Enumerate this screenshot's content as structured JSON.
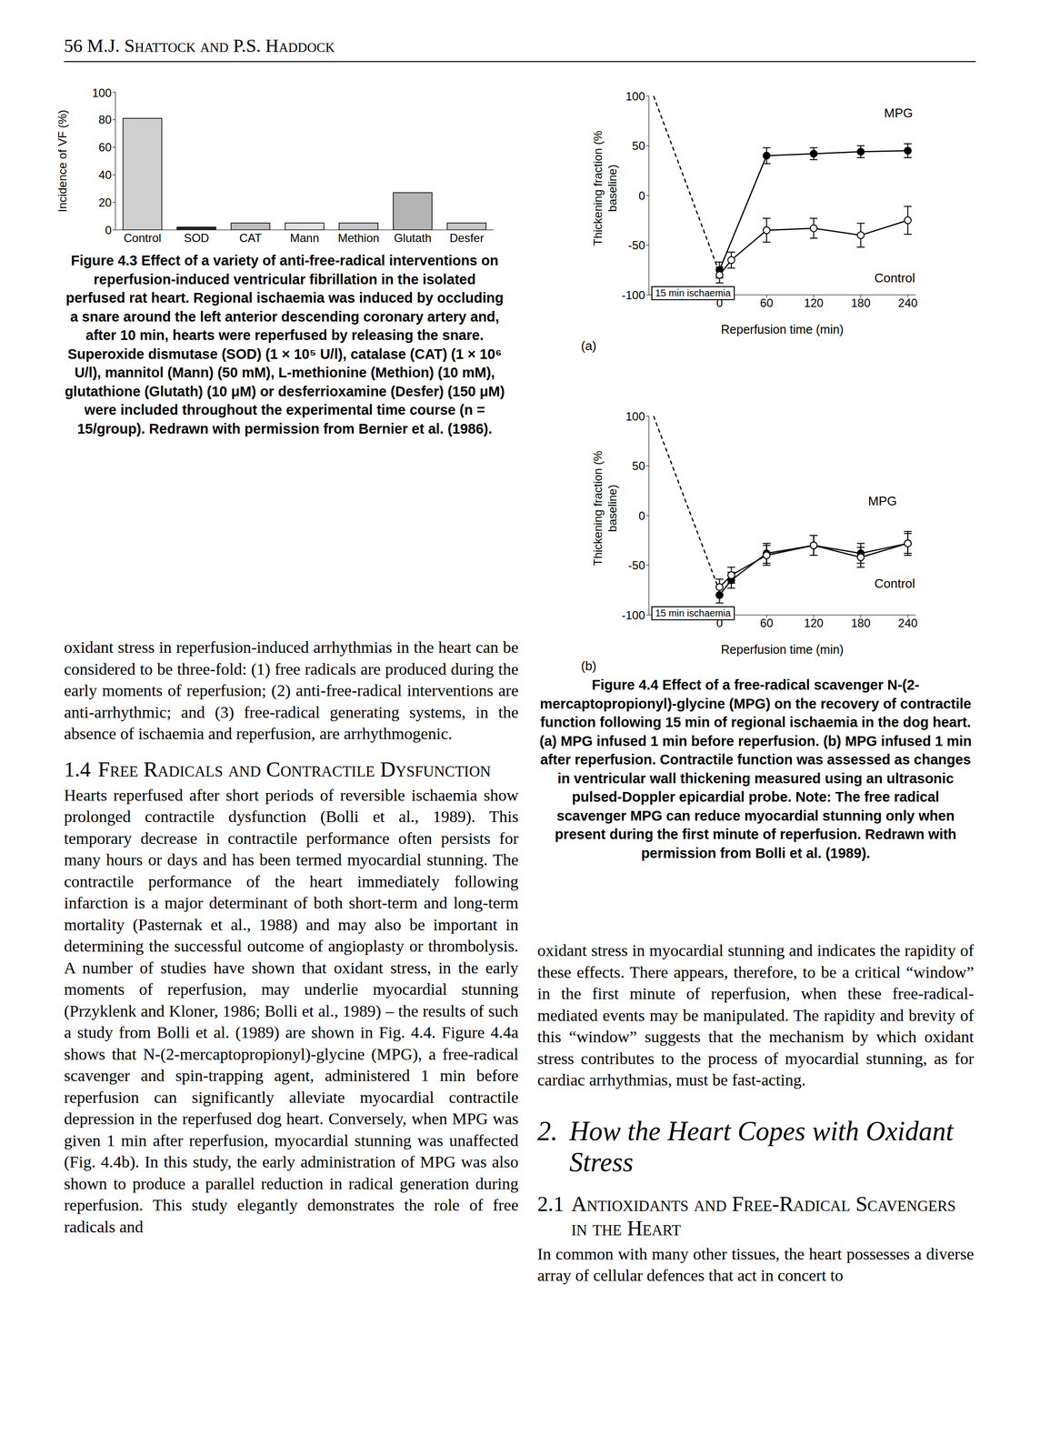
{
  "page": {
    "header": "56 M.J. Shattock and P.S. Haddock",
    "left_column": {
      "continued_paragraph": "oxidant stress in reperfusion-induced arrhythmias in the heart can be considered to be three-fold: (1) free radicals are produced during the early moments of reperfusion; (2) anti-free-radical interventions are anti-arrhythmic; and (3) free-radical generating systems, in the absence of ischaemia and reperfusion, are arrhythmogenic.",
      "section_number": "1.4",
      "section_title": "Free Radicals and Contractile Dysfunction",
      "paragraph": "Hearts reperfused after short periods of reversible ischaemia show prolonged contractile dysfunction (Bolli et al., 1989). This temporary decrease in contractile performance often persists for many hours or days and has been termed myocardial stunning. The contractile performance of the heart immediately following infarction is a major determinant of both short-term and long-term mortality (Pasternak et al., 1988) and may also be important in determining the successful outcome of angioplasty or thrombolysis. A number of studies have shown that oxidant stress, in the early moments of reperfusion, may underlie myocardial stunning (Przyklenk and Kloner, 1986; Bolli et al., 1989) – the results of such a study from Bolli et al. (1989) are shown in Fig. 4.4. Figure 4.4a shows that N-(2-mercaptopropionyl)-glycine (MPG), a free-radical scavenger and spin-trapping agent, administered 1 min before reperfusion can significantly alleviate myocardial contractile depression in the reperfused dog heart. Conversely, when MPG was given 1 min after reperfusion, myocardial stunning was unaffected (Fig. 4.4b). In this study, the early administration of MPG was also shown to produce a parallel reduction in radical generation during reperfusion. This study elegantly demonstrates the role of free radicals and"
    },
    "right_column": {
      "paragraph": "oxidant stress in myocardial stunning and indicates the rapidity of these effects. There appears, therefore, to be a critical “window” in the first minute of reperfusion, when these free-radical-mediated events may be manipulated. The rapidity and brevity of this “window” suggests that the mechanism by which oxidant stress contributes to the process of myocardial stunning, as for cardiac arrhythmias, must be fast-acting.",
      "section_number": "2.",
      "section_title": "How the Heart Copes with Oxidant Stress",
      "subsection_number": "2.1",
      "subsection_title": "Antioxidants and Free-Radical Scavengers in the Heart",
      "paragraph_2": "In common with many other tissues, the heart possesses a diverse array of cellular defences that act in concert to"
    },
    "captions": {
      "figure_4_3": "Figure 4.3 Effect of a variety of anti-free-radical interventions on reperfusion-induced ventricular fibrillation in the isolated perfused rat heart. Regional ischaemia was induced by occluding a snare around the left anterior descending coronary artery and, after 10 min, hearts were reperfused by releasing the snare. Superoxide dismutase (SOD) (1 × 10⁵ U/l), catalase (CAT) (1 × 10⁶ U/l), mannitol (Mann) (50 mM), L-methionine (Methion) (10 mM), glutathione (Glutath) (10 μM) or desferrioxamine (Desfer) (150 μM) were included throughout the experimental time course (n = 15/group). Redrawn with permission from Bernier et al. (1986).",
      "figure_4_4": "Figure 4.4 Effect of a free-radical scavenger N-(2-mercaptopropionyl)-glycine (MPG) on the recovery of contractile function following 15 min of regional ischaemia in the dog heart. (a) MPG infused 1 min before reperfusion. (b) MPG infused 1 min after reperfusion. Contractile function was assessed as changes in ventricular wall thickening measured using an ultrasonic pulsed-Doppler epicardial probe. Note: The free radical scavenger MPG can reduce myocardial stunning only when present during the first minute of reperfusion. Redrawn with permission from Bolli et al. (1989)."
    }
  },
  "chart_data": [
    {
      "type": "bar",
      "y_label": "Incidence of VF (%)",
      "categories": [
        "Control",
        "SOD",
        "CAT",
        "Mann",
        "Methion",
        "Glutath",
        "Desfer"
      ],
      "values": [
        81,
        2,
        5,
        5,
        5,
        27,
        5
      ],
      "colors": [
        "#cfcfcf",
        "#222222",
        "#bdbdbd",
        "#e2e2e2",
        "#c8c8c8",
        "#b4b4b4",
        "#c8c8c8"
      ],
      "ylim": [
        0,
        100
      ],
      "yticks": [
        0,
        20,
        40,
        60,
        80,
        100
      ],
      "grid": false
    },
    {
      "type": "line",
      "panel": "(a)",
      "x_label": "Reperfusion time (min)",
      "y_label": "Thickening fraction (% baseline)",
      "annotations": [
        "15 min ischaemia"
      ],
      "x": [
        -84,
        0,
        15,
        60,
        120,
        180,
        240
      ],
      "xlim": [
        -90,
        250
      ],
      "xticks": [
        0,
        60,
        120,
        180,
        240
      ],
      "ylim": [
        -100,
        100
      ],
      "yticks": [
        -100,
        -50,
        0,
        50,
        100
      ],
      "grid": false,
      "series": [
        {
          "line_style": "dashed",
          "marker": "none",
          "values": [
            100,
            -78,
            null,
            null,
            null,
            null,
            null
          ]
        },
        {
          "name": "MPG",
          "marker": "filled_circle",
          "line_style": "solid",
          "values": [
            null,
            -75,
            null,
            40,
            42,
            44,
            45
          ],
          "errors": [
            null,
            8,
            null,
            8,
            6,
            6,
            7
          ]
        },
        {
          "name": "Control",
          "marker": "open_circle",
          "line_style": "solid",
          "values": [
            null,
            -80,
            -65,
            -35,
            -33,
            -40,
            -25
          ],
          "errors": [
            null,
            8,
            8,
            12,
            10,
            12,
            14
          ]
        }
      ]
    },
    {
      "type": "line",
      "panel": "(b)",
      "x_label": "Reperfusion time (min)",
      "y_label": "Thickening fraction (% baseline)",
      "annotations": [
        "15 min ischaemia"
      ],
      "x": [
        -84,
        0,
        15,
        60,
        120,
        180,
        240
      ],
      "xlim": [
        -90,
        250
      ],
      "xticks": [
        0,
        60,
        120,
        180,
        240
      ],
      "ylim": [
        -100,
        100
      ],
      "yticks": [
        -100,
        -50,
        0,
        50,
        100
      ],
      "grid": false,
      "series": [
        {
          "line_style": "dashed",
          "marker": "none",
          "values": [
            100,
            -76,
            null,
            null,
            null,
            null,
            null
          ]
        },
        {
          "name": "MPG",
          "marker": "filled_circle",
          "line_style": "solid",
          "values": [
            null,
            -80,
            -65,
            -38,
            -30,
            -38,
            -28
          ],
          "errors": [
            null,
            8,
            8,
            10,
            10,
            10,
            10
          ]
        },
        {
          "name": "Control",
          "marker": "open_circle",
          "line_style": "solid",
          "values": [
            null,
            -72,
            -60,
            -40,
            -30,
            -42,
            -28
          ],
          "errors": [
            null,
            8,
            8,
            10,
            10,
            10,
            12
          ]
        }
      ]
    }
  ]
}
